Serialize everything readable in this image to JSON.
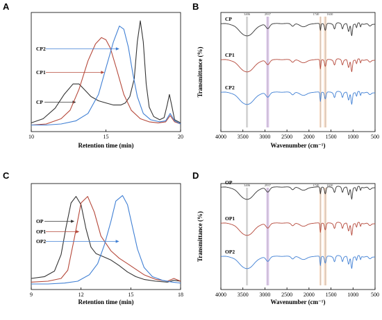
{
  "panels": [
    {
      "letter": "A"
    },
    {
      "letter": "B"
    },
    {
      "letter": "C"
    },
    {
      "letter": "D"
    }
  ],
  "colors": {
    "black": "#333333",
    "red": "#b5483a",
    "blue": "#3f7fd4",
    "band_gray": "#cccccc",
    "band_purple": "#c9a8e0",
    "band_orange": "#f3c9a8"
  },
  "chart_data": [
    {
      "panel": "A",
      "type": "line",
      "title": "",
      "xlabel": "Retention time (min)",
      "ylabel": "",
      "xlim": [
        10,
        20
      ],
      "xticks": [
        10,
        15,
        20
      ],
      "ylim": [
        0,
        1
      ],
      "grid": false,
      "legend": "inline labels with arrows",
      "series": [
        {
          "name": "CP",
          "color": "#333333",
          "x": [
            10,
            10.8,
            11.6,
            12.2,
            12.8,
            13.2,
            13.6,
            14.0,
            14.5,
            15.0,
            15.5,
            16.0,
            16.3,
            16.6,
            16.9,
            17.1,
            17.3,
            17.5,
            17.7,
            17.9,
            18.2,
            18.6,
            18.9,
            19.1,
            19.25,
            19.4,
            19.6,
            20
          ],
          "y": [
            0.03,
            0.07,
            0.17,
            0.3,
            0.4,
            0.4,
            0.34,
            0.28,
            0.24,
            0.22,
            0.2,
            0.2,
            0.22,
            0.28,
            0.45,
            0.8,
            1.0,
            0.8,
            0.4,
            0.18,
            0.09,
            0.06,
            0.08,
            0.2,
            0.3,
            0.2,
            0.06,
            0.03
          ]
        },
        {
          "name": "CP1",
          "color": "#b5483a",
          "x": [
            10,
            11,
            12,
            12.6,
            13.2,
            13.8,
            14.3,
            14.7,
            15.0,
            15.3,
            15.7,
            16.2,
            16.7,
            17.3,
            17.9,
            18.5,
            19.0,
            19.3,
            19.6,
            20
          ],
          "y": [
            0.01,
            0.02,
            0.07,
            0.15,
            0.35,
            0.62,
            0.78,
            0.84,
            0.82,
            0.74,
            0.55,
            0.3,
            0.15,
            0.07,
            0.04,
            0.03,
            0.04,
            0.1,
            0.04,
            0.02
          ]
        },
        {
          "name": "CP2",
          "color": "#3f7fd4",
          "x": [
            10,
            11,
            12,
            13,
            13.8,
            14.5,
            15.0,
            15.5,
            15.9,
            16.2,
            16.5,
            16.8,
            17.1,
            17.5,
            18,
            18.6,
            19.0,
            19.3,
            19.6,
            20
          ],
          "y": [
            0.01,
            0.01,
            0.02,
            0.05,
            0.12,
            0.3,
            0.55,
            0.8,
            0.95,
            0.92,
            0.75,
            0.5,
            0.28,
            0.12,
            0.06,
            0.04,
            0.05,
            0.12,
            0.05,
            0.02
          ]
        }
      ]
    },
    {
      "panel": "B",
      "type": "line",
      "title": "",
      "xlabel": "Wavenumber (cm⁻¹)",
      "ylabel": "Transmittance (%)",
      "xlim": [
        4000,
        500
      ],
      "xticks": [
        4000,
        3500,
        3000,
        2500,
        2000,
        1500,
        1000,
        500
      ],
      "grid": false,
      "legend": "inline labels at top-left of each trace",
      "markers": [
        {
          "label": "3406",
          "x": 3406
        },
        {
          "label": "2937",
          "x": 2937
        },
        {
          "label": "1740",
          "x": 1740
        },
        {
          "label": "1630",
          "x": 1630
        }
      ],
      "series": [
        {
          "name": "CP",
          "color": "#333333"
        },
        {
          "name": "CP1",
          "color": "#b5483a"
        },
        {
          "name": "CP2",
          "color": "#3f7fd4"
        }
      ]
    },
    {
      "panel": "C",
      "type": "line",
      "title": "",
      "xlabel": "Retention time (min)",
      "ylabel": "",
      "xlim": [
        9,
        18
      ],
      "xticks": [
        9,
        12,
        15,
        18
      ],
      "ylim": [
        0,
        1
      ],
      "grid": false,
      "legend": "inline labels with arrows",
      "series": [
        {
          "name": "OP",
          "color": "#333333",
          "x": [
            9,
            9.8,
            10.4,
            10.8,
            11.1,
            11.4,
            11.7,
            12.0,
            12.3,
            12.6,
            12.9,
            13.3,
            13.8,
            14.3,
            14.8,
            15.3,
            15.8,
            16.5,
            17.2,
            17.6,
            18
          ],
          "y": [
            0.06,
            0.08,
            0.14,
            0.32,
            0.62,
            0.88,
            0.95,
            0.86,
            0.6,
            0.4,
            0.33,
            0.3,
            0.26,
            0.2,
            0.13,
            0.08,
            0.05,
            0.03,
            0.02,
            0.04,
            0.03
          ]
        },
        {
          "name": "OP1",
          "color": "#b5483a",
          "x": [
            9,
            10,
            10.8,
            11.2,
            11.6,
            12.0,
            12.4,
            12.8,
            13.2,
            13.8,
            14.3,
            14.8,
            15.3,
            15.8,
            16.5,
            17.2,
            17.6,
            18
          ],
          "y": [
            0.02,
            0.03,
            0.06,
            0.15,
            0.5,
            0.88,
            0.95,
            0.78,
            0.52,
            0.36,
            0.28,
            0.22,
            0.16,
            0.1,
            0.05,
            0.03,
            0.06,
            0.03
          ]
        },
        {
          "name": "OP2",
          "color": "#3f7fd4",
          "x": [
            9,
            10,
            11,
            11.8,
            12.5,
            13.0,
            13.4,
            13.8,
            14.1,
            14.5,
            14.8,
            15.1,
            15.4,
            15.8,
            16.3,
            16.9,
            17.5,
            18
          ],
          "y": [
            0.0,
            0.0,
            0.01,
            0.03,
            0.1,
            0.22,
            0.42,
            0.68,
            0.9,
            0.96,
            0.86,
            0.62,
            0.38,
            0.18,
            0.08,
            0.04,
            0.02,
            0.01
          ]
        }
      ]
    },
    {
      "panel": "D",
      "type": "line",
      "title": "",
      "xlabel": "Wavenumber (cm⁻¹)",
      "ylabel": "Transmittance (%)",
      "xlim": [
        4000,
        500
      ],
      "xticks": [
        4000,
        3500,
        3000,
        2500,
        2000,
        1500,
        1000,
        500
      ],
      "grid": false,
      "legend": "inline labels at top-left of each trace",
      "markers": [
        {
          "label": "3406",
          "x": 3406
        },
        {
          "label": "2937",
          "x": 2937
        },
        {
          "label": "1740",
          "x": 1740
        },
        {
          "label": "1630",
          "x": 1630
        }
      ],
      "series": [
        {
          "name": "OP",
          "color": "#333333"
        },
        {
          "name": "OP1",
          "color": "#b5483a"
        },
        {
          "name": "OP2",
          "color": "#3f7fd4"
        }
      ]
    }
  ]
}
